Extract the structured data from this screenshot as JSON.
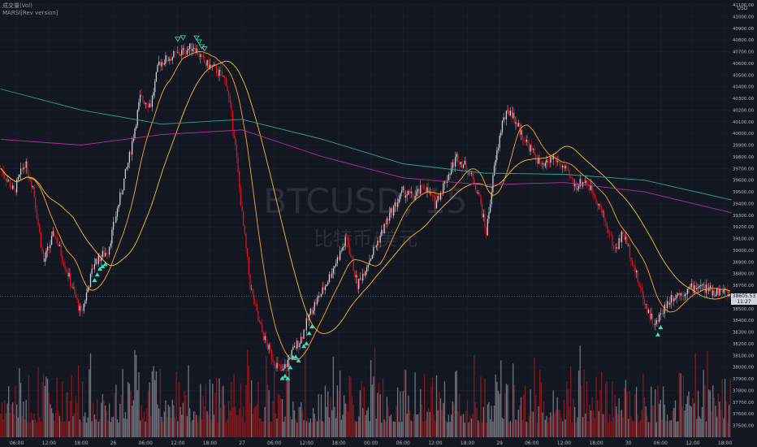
{
  "legend": {
    "line1": "成交量(Vol)",
    "line2": "MARSI[Rev version]"
  },
  "watermark": {
    "symbol": "BTCUSD, 15",
    "name": "比特币/美元"
  },
  "price_tag": {
    "price": "38605.53",
    "countdown": "11:27"
  },
  "colors": {
    "background": "#131722",
    "grid": "#1e2230",
    "axis_text": "#b2b5be",
    "candle_up": "#d1d4dc",
    "candle_down": "#e1141e",
    "ma_fast": "#ffa726",
    "ma_mid": "#fbc02d",
    "ma_slow_magenta": "#b62c9e",
    "ma_slow_teal": "#26a69a",
    "marker_teal": "#2ee6c6",
    "volume_up": "#787b86",
    "volume_down": "#8d1a1e",
    "watermark": "#2a2e39"
  },
  "chart_data": {
    "type": "candlestick",
    "timeframe": "15",
    "y_unit": "USD",
    "ylim": [
      37400,
      41100
    ],
    "y_ticks": [
      37500,
      37600,
      37700,
      37800,
      37900,
      38000,
      38100,
      38200,
      38300,
      38400,
      38500,
      38600,
      38700,
      38800,
      38900,
      39000,
      39100,
      39200,
      39300,
      39400,
      39500,
      39600,
      39700,
      39800,
      39900,
      40000,
      40100,
      40200,
      40300,
      40400,
      40500,
      40600,
      40700,
      40800,
      40900,
      41000,
      41100
    ],
    "x_ticks": [
      {
        "label": "06:00",
        "bar": 12
      },
      {
        "label": "12:00",
        "bar": 36
      },
      {
        "label": "18:00",
        "bar": 60
      },
      {
        "label": "26",
        "bar": 84
      },
      {
        "label": "06:00",
        "bar": 108
      },
      {
        "label": "12:00",
        "bar": 132
      },
      {
        "label": "18:00",
        "bar": 156
      },
      {
        "label": "27",
        "bar": 180
      },
      {
        "label": "06:00",
        "bar": 204
      },
      {
        "label": "12:00",
        "bar": 228
      },
      {
        "label": "18:00",
        "bar": 252
      },
      {
        "label": "00:00",
        "bar": 276
      },
      {
        "label": "06:00",
        "bar": 300
      },
      {
        "label": "12:00",
        "bar": 324
      },
      {
        "label": "18:00",
        "bar": 348
      },
      {
        "label": "29",
        "bar": 372
      },
      {
        "label": "06:00",
        "bar": 396
      },
      {
        "label": "12:00",
        "bar": 420
      },
      {
        "label": "18:00",
        "bar": 444
      },
      {
        "label": "30",
        "bar": 468
      },
      {
        "label": "06:00",
        "bar": 492
      },
      {
        "label": "12:00",
        "bar": 516
      },
      {
        "label": "18:00",
        "bar": 540
      }
    ],
    "bar_count": 545,
    "last_price": 38605.53,
    "close_anchors": [
      [
        0,
        39700
      ],
      [
        10,
        39500
      ],
      [
        18,
        39750
      ],
      [
        24,
        39550
      ],
      [
        32,
        38900
      ],
      [
        40,
        39150
      ],
      [
        50,
        38800
      ],
      [
        60,
        38450
      ],
      [
        70,
        38900
      ],
      [
        80,
        39000
      ],
      [
        88,
        39400
      ],
      [
        96,
        39800
      ],
      [
        104,
        40300
      ],
      [
        112,
        40250
      ],
      [
        118,
        40600
      ],
      [
        126,
        40650
      ],
      [
        136,
        40700
      ],
      [
        144,
        40750
      ],
      [
        152,
        40600
      ],
      [
        160,
        40550
      ],
      [
        168,
        40450
      ],
      [
        174,
        40000
      ],
      [
        180,
        39300
      ],
      [
        186,
        38700
      ],
      [
        192,
        38400
      ],
      [
        198,
        38200
      ],
      [
        204,
        38050
      ],
      [
        210,
        37950
      ],
      [
        216,
        38100
      ],
      [
        224,
        38250
      ],
      [
        232,
        38500
      ],
      [
        240,
        38650
      ],
      [
        250,
        38900
      ],
      [
        258,
        39100
      ],
      [
        266,
        38700
      ],
      [
        274,
        38900
      ],
      [
        282,
        39100
      ],
      [
        290,
        39300
      ],
      [
        300,
        39500
      ],
      [
        308,
        39450
      ],
      [
        316,
        39550
      ],
      [
        324,
        39400
      ],
      [
        332,
        39600
      ],
      [
        340,
        39800
      ],
      [
        348,
        39700
      ],
      [
        356,
        39500
      ],
      [
        362,
        39150
      ],
      [
        368,
        39700
      ],
      [
        374,
        40100
      ],
      [
        380,
        40200
      ],
      [
        388,
        40000
      ],
      [
        396,
        39850
      ],
      [
        404,
        39700
      ],
      [
        412,
        39800
      ],
      [
        420,
        39700
      ],
      [
        428,
        39550
      ],
      [
        436,
        39600
      ],
      [
        444,
        39450
      ],
      [
        452,
        39200
      ],
      [
        458,
        39000
      ],
      [
        464,
        39150
      ],
      [
        470,
        38950
      ],
      [
        476,
        38700
      ],
      [
        482,
        38500
      ],
      [
        488,
        38350
      ],
      [
        494,
        38500
      ],
      [
        500,
        38600
      ],
      [
        510,
        38650
      ],
      [
        520,
        38700
      ],
      [
        530,
        38650
      ],
      [
        540,
        38650
      ],
      [
        544,
        38605
      ]
    ],
    "series": [
      {
        "type": "ma",
        "period": 21,
        "color": "#ffa726"
      },
      {
        "type": "ma",
        "period": 55,
        "color": "#fbc02d"
      },
      {
        "type": "line",
        "color": "#b62c9e",
        "points": [
          [
            0,
            39950
          ],
          [
            60,
            39900
          ],
          [
            120,
            39990
          ],
          [
            180,
            40030
          ],
          [
            240,
            39800
          ],
          [
            300,
            39620
          ],
          [
            360,
            39560
          ],
          [
            420,
            39580
          ],
          [
            480,
            39500
          ],
          [
            545,
            39320
          ]
        ]
      },
      {
        "type": "line",
        "color": "#26a69a",
        "points": [
          [
            0,
            40380
          ],
          [
            60,
            40200
          ],
          [
            120,
            40080
          ],
          [
            180,
            40120
          ],
          [
            240,
            39950
          ],
          [
            300,
            39740
          ],
          [
            360,
            39660
          ],
          [
            420,
            39650
          ],
          [
            480,
            39600
          ],
          [
            545,
            39430
          ]
        ]
      }
    ],
    "markers": {
      "buy_bars": [
        70,
        72,
        74,
        76,
        78,
        210,
        212,
        214,
        216,
        218,
        220,
        222,
        226,
        228,
        230,
        232,
        490,
        492
      ],
      "sell_bars": [
        132,
        136,
        146,
        148,
        150,
        152
      ]
    }
  }
}
